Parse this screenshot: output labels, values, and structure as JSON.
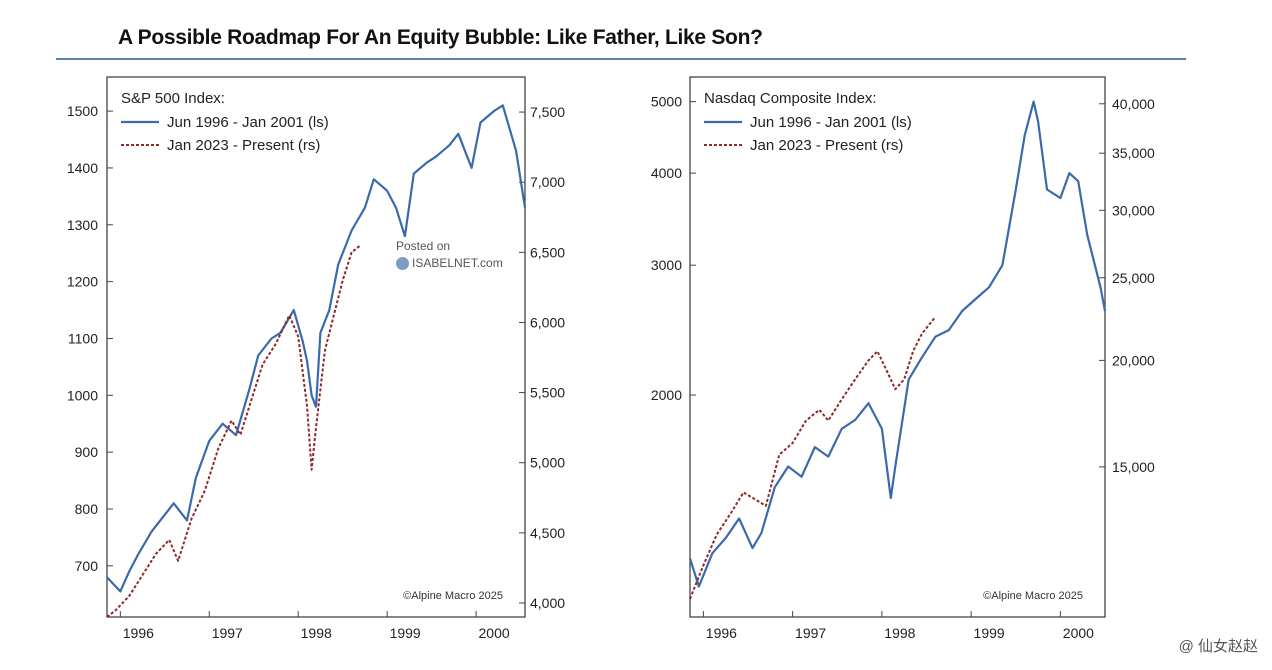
{
  "title": "A Possible Roadmap For An Equity Bubble: Like Father, Like Son?",
  "watermark": {
    "line1": "Posted on",
    "line2": "ISABELNET.com"
  },
  "corner_mark": "@ 仙女赵赵",
  "colors": {
    "blue": "#3a6aab",
    "red": "#8e2a2a",
    "frame": "#444444",
    "rule": "#5b7fae"
  },
  "chart_data": [
    {
      "type": "line",
      "legend_title": "S&P 500 Index:",
      "credit": "©Alpine Macro 2025",
      "x_ticks": [
        "1996",
        "1997",
        "1998",
        "1999",
        "2000"
      ],
      "x_tick_values": [
        1996.0,
        1997.0,
        1998.0,
        1999.0,
        2000.0
      ],
      "xlim": [
        1995.85,
        2000.55
      ],
      "y_left": {
        "ticks": [
          700,
          800,
          900,
          1000,
          1100,
          1200,
          1300,
          1400,
          1500
        ],
        "lim": [
          610,
          1560
        ],
        "scale": "linear"
      },
      "y_right": {
        "ticks": [
          "4,000",
          "4,500",
          "5,000",
          "5,500",
          "6,000",
          "6,500",
          "7,000",
          "7,500"
        ],
        "tick_values": [
          4000,
          4500,
          5000,
          5500,
          6000,
          6500,
          7000,
          7500
        ],
        "lim": [
          3900,
          7750
        ],
        "scale": "linear"
      },
      "series": [
        {
          "name": "Jun 1996 - Jan 2001 (ls)",
          "axis": "left",
          "style": "solid",
          "x": [
            1995.85,
            1996.0,
            1996.1,
            1996.2,
            1996.35,
            1996.5,
            1996.6,
            1996.75,
            1996.85,
            1997.0,
            1997.15,
            1997.3,
            1997.45,
            1997.55,
            1997.7,
            1997.8,
            1997.95,
            1998.05,
            1998.1,
            1998.15,
            1998.2,
            1998.25,
            1998.35,
            1998.45,
            1998.6,
            1998.75,
            1998.85,
            1999.0,
            1999.1,
            1999.2,
            1999.3,
            1999.45,
            1999.55,
            1999.7,
            1999.8,
            1999.95,
            2000.05,
            2000.2,
            2000.3,
            2000.45,
            2000.55
          ],
          "y": [
            680,
            655,
            690,
            720,
            760,
            790,
            810,
            780,
            855,
            920,
            950,
            930,
            1010,
            1070,
            1100,
            1110,
            1150,
            1095,
            1060,
            1000,
            980,
            1110,
            1150,
            1230,
            1290,
            1330,
            1380,
            1360,
            1330,
            1280,
            1390,
            1410,
            1420,
            1440,
            1460,
            1400,
            1480,
            1500,
            1510,
            1430,
            1330
          ]
        },
        {
          "name": "Jan 2023 - Present (rs)",
          "axis": "right",
          "style": "dashed",
          "x": [
            1995.85,
            1995.95,
            1996.1,
            1996.25,
            1996.4,
            1996.55,
            1996.65,
            1996.8,
            1996.95,
            1997.1,
            1997.25,
            1997.35,
            1997.5,
            1997.6,
            1997.75,
            1997.9,
            1998.0,
            1998.1,
            1998.15,
            1998.2,
            1998.3,
            1998.4,
            1998.5,
            1998.6,
            1998.7
          ],
          "y": [
            3900,
            3950,
            4050,
            4200,
            4350,
            4450,
            4300,
            4600,
            4800,
            5100,
            5300,
            5200,
            5500,
            5700,
            5850,
            6050,
            5900,
            5400,
            4950,
            5250,
            5800,
            6050,
            6300,
            6500,
            6550
          ]
        }
      ]
    },
    {
      "type": "line",
      "legend_title": "Nasdaq Composite Index:",
      "credit": "©Alpine Macro 2025",
      "x_ticks": [
        "1996",
        "1997",
        "1998",
        "1999",
        "2000"
      ],
      "x_tick_values": [
        1996.0,
        1997.0,
        1998.0,
        1999.0,
        2000.0
      ],
      "xlim": [
        1995.85,
        2000.5
      ],
      "y_left": {
        "ticks": [
          2000,
          3000,
          4000,
          5000
        ],
        "lim": [
          1000,
          5400
        ],
        "scale": "log"
      },
      "y_right": {
        "ticks": [
          "15,000",
          "20,000",
          "25,000",
          "30,000",
          "35,000",
          "40,000"
        ],
        "tick_values": [
          15000,
          20000,
          25000,
          30000,
          35000,
          40000
        ],
        "lim": [
          10000,
          43000
        ],
        "scale": "log"
      },
      "series": [
        {
          "name": "Jun 1996 - Jan 2001 (ls)",
          "axis": "left",
          "style": "solid",
          "x": [
            1995.85,
            1995.95,
            1996.1,
            1996.25,
            1996.4,
            1996.55,
            1996.65,
            1996.8,
            1996.95,
            1997.1,
            1997.25,
            1997.4,
            1997.55,
            1997.7,
            1997.85,
            1998.0,
            1998.1,
            1998.15,
            1998.2,
            1998.3,
            1998.45,
            1998.6,
            1998.75,
            1998.9,
            1999.05,
            1999.2,
            1999.35,
            1999.5,
            1999.6,
            1999.7,
            1999.75,
            1999.85,
            2000.0,
            2000.1,
            2000.2,
            2000.3,
            2000.45,
            2000.5
          ],
          "y": [
            1200,
            1100,
            1220,
            1280,
            1360,
            1240,
            1300,
            1500,
            1600,
            1550,
            1700,
            1650,
            1800,
            1850,
            1950,
            1800,
            1450,
            1600,
            1750,
            2100,
            2250,
            2400,
            2450,
            2600,
            2700,
            2800,
            3000,
            3800,
            4500,
            5000,
            4700,
            3800,
            3700,
            4000,
            3900,
            3300,
            2800,
            2600
          ]
        },
        {
          "name": "Jan 2023 - Present (rs)",
          "axis": "right",
          "style": "dashed",
          "x": [
            1995.85,
            1996.0,
            1996.15,
            1996.3,
            1996.45,
            1996.55,
            1996.7,
            1996.85,
            1997.0,
            1997.15,
            1997.3,
            1997.4,
            1997.55,
            1997.7,
            1997.85,
            1997.95,
            1998.05,
            1998.15,
            1998.25,
            1998.35,
            1998.45,
            1998.6
          ],
          "y": [
            10500,
            11500,
            12500,
            13200,
            14000,
            13800,
            13500,
            15500,
            16000,
            17000,
            17500,
            17000,
            18000,
            19000,
            20000,
            20500,
            19500,
            18500,
            19000,
            20500,
            21500,
            22500
          ]
        }
      ]
    }
  ],
  "legend": {
    "left": {
      "solid": "Jun 1996 - Jan 2001 (ls)",
      "dashed": "Jan 2023 - Present (rs)"
    },
    "right": {
      "solid": "Jun 1996 - Jan 2001 (ls)",
      "dashed": "Jan 2023 - Present (rs)"
    }
  }
}
